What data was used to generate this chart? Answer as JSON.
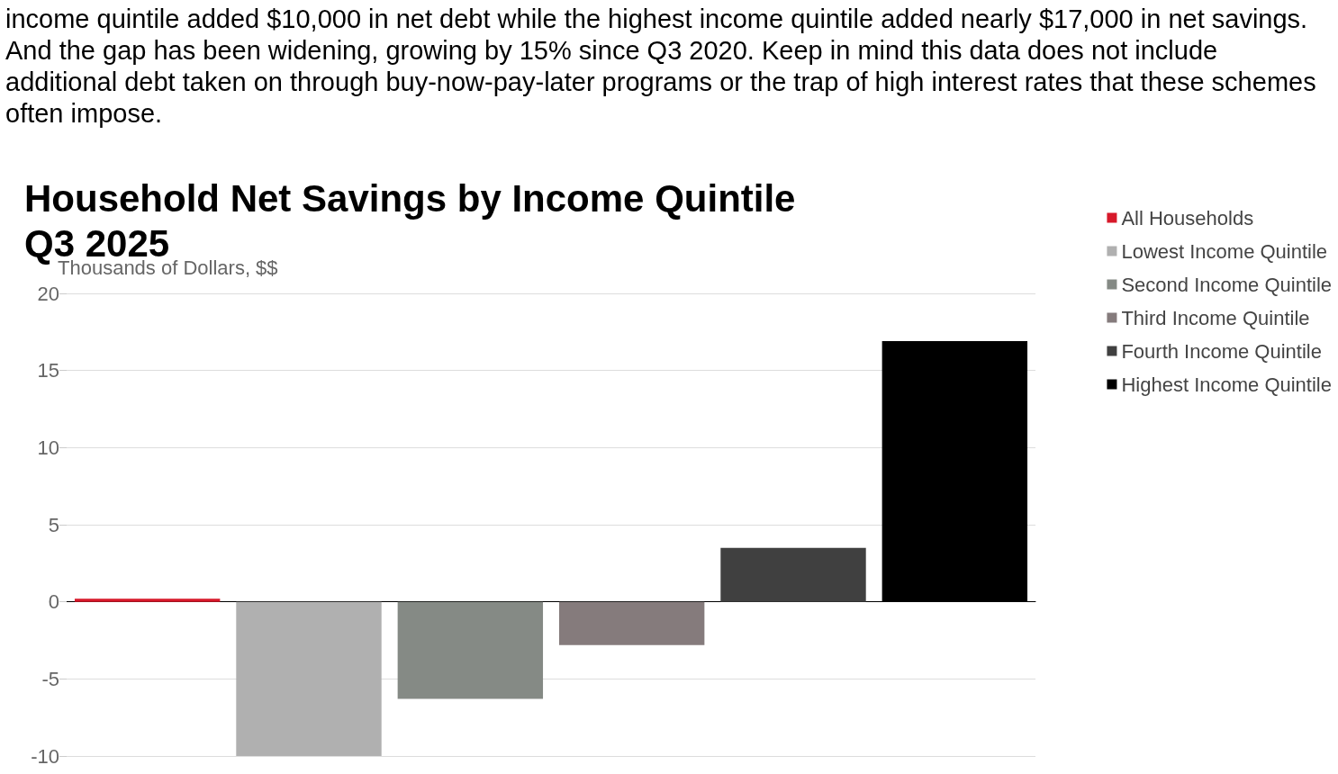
{
  "chart_data": {
    "type": "bar",
    "title": "Household Net Savings by Income Quintile",
    "subtitle": "Q3 2025",
    "ylabel": "Thousands of Dollars, $$",
    "annotations": [
      "income quintile added $10,000 in net debt while the highest income quintile added nearly $17,000 in net savings. And the gap has been widening, growing by 15% since Q3 2020. Keep in mind this data does not include additional debt taken on through buy-now-pay-later programs or the trap of high interest rates that these schemes often impose."
    ],
    "categories": [
      null,
      null,
      null,
      null,
      null,
      null
    ],
    "stacked": true,
    "series": [
      {
        "name": "All Households",
        "color": "#d7192a",
        "values": [
          0.2,
          null,
          null,
          null,
          null,
          null
        ]
      },
      {
        "name": "Lowest Income Quintile",
        "color": "#b0b0b0",
        "values": [
          null,
          -10,
          null,
          null,
          null,
          null
        ]
      },
      {
        "name": "Second Income Quintile",
        "color": "#858a85",
        "values": [
          null,
          null,
          -6.3,
          null,
          null,
          null
        ]
      },
      {
        "name": "Third Income Quintile",
        "color": "#857b7c",
        "values": [
          null,
          null,
          null,
          -2.8,
          null,
          null
        ]
      },
      {
        "name": "Fourth Income Quintile",
        "color": "#404040",
        "values": [
          null,
          null,
          null,
          null,
          3.5,
          null
        ]
      },
      {
        "name": "Highest Income Quintile",
        "color": "#000000",
        "values": [
          null,
          null,
          null,
          null,
          null,
          16.9
        ]
      }
    ],
    "ylim": [
      -10,
      20
    ],
    "yticks": [
      -10,
      -5,
      0,
      5,
      10,
      15,
      20
    ],
    "grid": "y",
    "legend": "right"
  }
}
